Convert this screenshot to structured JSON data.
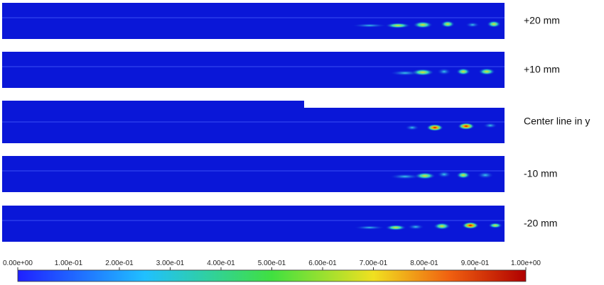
{
  "panels": [
    {
      "label": "+20 mm"
    },
    {
      "label": "+10 mm"
    },
    {
      "label": "Center line in y"
    },
    {
      "label": "-10 mm"
    },
    {
      "label": "-20 mm"
    }
  ],
  "colorbar": {
    "lim": [
      0,
      1
    ],
    "ticks": [
      {
        "value": 0,
        "label": "0.00e+00"
      },
      {
        "value": 0.1,
        "label": "1.00e-01"
      },
      {
        "value": 0.2,
        "label": "2.00e-01"
      },
      {
        "value": 0.3,
        "label": "3.00e-01"
      },
      {
        "value": 0.4,
        "label": "4.00e-01"
      },
      {
        "value": 0.5,
        "label": "5.00e-01"
      },
      {
        "value": 0.6,
        "label": "6.00e-01"
      },
      {
        "value": 0.7,
        "label": "7.00e-01"
      },
      {
        "value": 0.8,
        "label": "8.00e-01"
      },
      {
        "value": 0.9,
        "label": "9.00e-01"
      },
      {
        "value": 1,
        "label": "1.00e+00"
      }
    ]
  }
}
